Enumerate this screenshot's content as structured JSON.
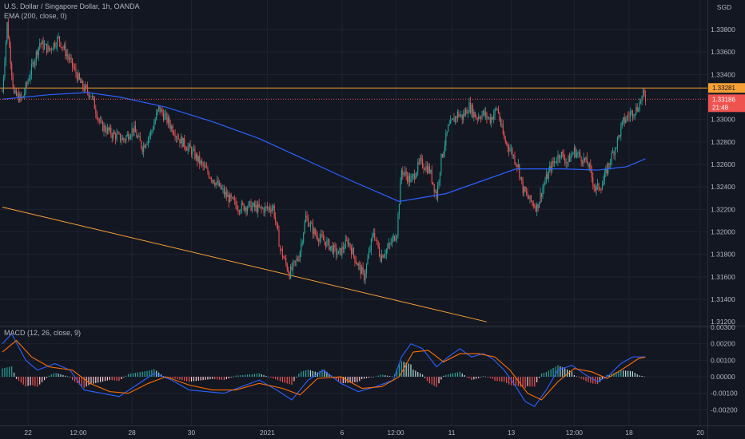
{
  "header": {
    "symbol_line": "U.S. Dollar / Singapore Dollar, 1h, OANDA",
    "ema_line": "EMA (200, close, 0)",
    "currency": "SGD"
  },
  "macd_pane": {
    "title": "MACD (12, 26, close, 9)"
  },
  "price_tags": {
    "resistance": "1.33281",
    "last": "1.33186",
    "countdown": "21:48"
  },
  "colors": {
    "background": "#131722",
    "up": "#26a69a",
    "down": "#ef5350",
    "ema": "#2962ff",
    "resistance": "#f7a035",
    "trendline": "#f7a035",
    "macd_line": "#2962ff",
    "signal_line": "#ff6d00"
  },
  "chart_data": [
    {
      "type": "candlestick",
      "title": "U.S. Dollar / Singapore Dollar, 1h, OANDA",
      "ylabel": "SGD",
      "ylim": [
        1.3118,
        1.3402
      ],
      "y_ticks": [
        "1.33800",
        "1.33600",
        "1.33400",
        "1.33000",
        "1.32800",
        "1.32600",
        "1.32400",
        "1.32200",
        "1.32000",
        "1.31800",
        "1.31600",
        "1.31400",
        "1.31200"
      ],
      "x_ticks": [
        "22",
        "12:00",
        "28",
        "30",
        "2021",
        "6",
        "12:00",
        "11",
        "13",
        "12:00",
        "18",
        "20"
      ],
      "x_tick_index": [
        22,
        65,
        111,
        162,
        227,
        291,
        337,
        385,
        436,
        490,
        537,
        598
      ],
      "close_path": [
        {
          "i": 0,
          "c": 1.3325
        },
        {
          "i": 4,
          "c": 1.3385
        },
        {
          "i": 10,
          "c": 1.3322
        },
        {
          "i": 17,
          "c": 1.3318
        },
        {
          "i": 27,
          "c": 1.3352
        },
        {
          "i": 32,
          "c": 1.3368
        },
        {
          "i": 40,
          "c": 1.3362
        },
        {
          "i": 48,
          "c": 1.3372
        },
        {
          "i": 58,
          "c": 1.3352
        },
        {
          "i": 68,
          "c": 1.333
        },
        {
          "i": 76,
          "c": 1.3322
        },
        {
          "i": 84,
          "c": 1.3295
        },
        {
          "i": 94,
          "c": 1.3287
        },
        {
          "i": 104,
          "c": 1.3282
        },
        {
          "i": 112,
          "c": 1.3292
        },
        {
          "i": 120,
          "c": 1.3275
        },
        {
          "i": 128,
          "c": 1.329
        },
        {
          "i": 134,
          "c": 1.331
        },
        {
          "i": 142,
          "c": 1.3298
        },
        {
          "i": 152,
          "c": 1.3282
        },
        {
          "i": 162,
          "c": 1.3272
        },
        {
          "i": 172,
          "c": 1.3258
        },
        {
          "i": 182,
          "c": 1.3245
        },
        {
          "i": 192,
          "c": 1.3232
        },
        {
          "i": 202,
          "c": 1.3222
        },
        {
          "i": 212,
          "c": 1.3223
        },
        {
          "i": 222,
          "c": 1.322
        },
        {
          "i": 232,
          "c": 1.3222
        },
        {
          "i": 238,
          "c": 1.3185
        },
        {
          "i": 246,
          "c": 1.3163
        },
        {
          "i": 254,
          "c": 1.3178
        },
        {
          "i": 260,
          "c": 1.3213
        },
        {
          "i": 268,
          "c": 1.3198
        },
        {
          "i": 278,
          "c": 1.319
        },
        {
          "i": 288,
          "c": 1.318
        },
        {
          "i": 296,
          "c": 1.3192
        },
        {
          "i": 304,
          "c": 1.3172
        },
        {
          "i": 310,
          "c": 1.316
        },
        {
          "i": 318,
          "c": 1.32
        },
        {
          "i": 324,
          "c": 1.3178
        },
        {
          "i": 332,
          "c": 1.3188
        },
        {
          "i": 338,
          "c": 1.32
        },
        {
          "i": 342,
          "c": 1.3255
        },
        {
          "i": 350,
          "c": 1.3245
        },
        {
          "i": 358,
          "c": 1.3262
        },
        {
          "i": 366,
          "c": 1.3255
        },
        {
          "i": 372,
          "c": 1.3232
        },
        {
          "i": 376,
          "c": 1.3265
        },
        {
          "i": 382,
          "c": 1.3292
        },
        {
          "i": 390,
          "c": 1.3305
        },
        {
          "i": 394,
          "c": 1.3302
        },
        {
          "i": 400,
          "c": 1.3312
        },
        {
          "i": 406,
          "c": 1.3302
        },
        {
          "i": 412,
          "c": 1.3305
        },
        {
          "i": 418,
          "c": 1.33
        },
        {
          "i": 424,
          "c": 1.331
        },
        {
          "i": 430,
          "c": 1.3282
        },
        {
          "i": 436,
          "c": 1.3272
        },
        {
          "i": 442,
          "c": 1.3258
        },
        {
          "i": 446,
          "c": 1.3238
        },
        {
          "i": 452,
          "c": 1.3228
        },
        {
          "i": 458,
          "c": 1.3222
        },
        {
          "i": 464,
          "c": 1.3242
        },
        {
          "i": 470,
          "c": 1.3258
        },
        {
          "i": 478,
          "c": 1.327
        },
        {
          "i": 484,
          "c": 1.3262
        },
        {
          "i": 490,
          "c": 1.3272
        },
        {
          "i": 496,
          "c": 1.3266
        },
        {
          "i": 502,
          "c": 1.326
        },
        {
          "i": 508,
          "c": 1.3238
        },
        {
          "i": 514,
          "c": 1.3242
        },
        {
          "i": 520,
          "c": 1.3262
        },
        {
          "i": 526,
          "c": 1.3278
        },
        {
          "i": 532,
          "c": 1.3298
        },
        {
          "i": 538,
          "c": 1.3305
        },
        {
          "i": 544,
          "c": 1.331
        },
        {
          "i": 549,
          "c": 1.3322
        },
        {
          "i": 551,
          "c": 1.3318
        }
      ],
      "ema200": [
        {
          "i": 0,
          "v": 1.3318
        },
        {
          "i": 40,
          "v": 1.3322
        },
        {
          "i": 73,
          "v": 1.3324
        },
        {
          "i": 100,
          "v": 1.332
        },
        {
          "i": 140,
          "v": 1.3311
        },
        {
          "i": 180,
          "v": 1.3298
        },
        {
          "i": 220,
          "v": 1.3283
        },
        {
          "i": 260,
          "v": 1.3264
        },
        {
          "i": 300,
          "v": 1.3245
        },
        {
          "i": 340,
          "v": 1.3227
        },
        {
          "i": 380,
          "v": 1.3234
        },
        {
          "i": 410,
          "v": 1.3245
        },
        {
          "i": 440,
          "v": 1.3256
        },
        {
          "i": 480,
          "v": 1.3256
        },
        {
          "i": 510,
          "v": 1.3255
        },
        {
          "i": 535,
          "v": 1.3258
        },
        {
          "i": 551,
          "v": 1.3265
        }
      ],
      "resistance_level": 1.3328,
      "trendline": [
        {
          "i": 0,
          "v": 1.3222
        },
        {
          "i": 415,
          "v": 1.312
        }
      ]
    },
    {
      "type": "histogram+line",
      "title": "MACD (12, 26, close, 9)",
      "ylim": [
        -0.0029,
        0.003
      ],
      "y_ticks": [
        "0.00300",
        "0.00200",
        "0.00100",
        "0.00000",
        "-0.00100",
        "-0.00200"
      ],
      "macd": [
        {
          "i": 0,
          "v": 0.002
        },
        {
          "i": 8,
          "v": 0.0026
        },
        {
          "i": 20,
          "v": 0.001
        },
        {
          "i": 30,
          "v": 0.0004
        },
        {
          "i": 45,
          "v": 0.0008
        },
        {
          "i": 58,
          "v": 0.0004
        },
        {
          "i": 70,
          "v": -0.0008
        },
        {
          "i": 85,
          "v": -0.001
        },
        {
          "i": 100,
          "v": -0.0012
        },
        {
          "i": 115,
          "v": -0.0005
        },
        {
          "i": 130,
          "v": 0.0002
        },
        {
          "i": 145,
          "v": -0.0002
        },
        {
          "i": 160,
          "v": -0.0008
        },
        {
          "i": 175,
          "v": -0.0009
        },
        {
          "i": 190,
          "v": -0.001
        },
        {
          "i": 205,
          "v": -0.0006
        },
        {
          "i": 220,
          "v": -0.0002
        },
        {
          "i": 235,
          "v": -0.0008
        },
        {
          "i": 248,
          "v": -0.0014
        },
        {
          "i": 262,
          "v": -0.0002
        },
        {
          "i": 275,
          "v": 0.0004
        },
        {
          "i": 290,
          "v": -0.0004
        },
        {
          "i": 305,
          "v": -0.0009
        },
        {
          "i": 320,
          "v": -0.0006
        },
        {
          "i": 335,
          "v": -0.0002
        },
        {
          "i": 342,
          "v": 0.0012
        },
        {
          "i": 350,
          "v": 0.002
        },
        {
          "i": 360,
          "v": 0.0017
        },
        {
          "i": 372,
          "v": 0.0006
        },
        {
          "i": 382,
          "v": 0.0012
        },
        {
          "i": 392,
          "v": 0.0017
        },
        {
          "i": 402,
          "v": 0.0012
        },
        {
          "i": 412,
          "v": 0.0014
        },
        {
          "i": 420,
          "v": 0.0011
        },
        {
          "i": 430,
          "v": 0.0004
        },
        {
          "i": 440,
          "v": -0.0006
        },
        {
          "i": 448,
          "v": -0.0015
        },
        {
          "i": 456,
          "v": -0.0018
        },
        {
          "i": 466,
          "v": -0.0008
        },
        {
          "i": 476,
          "v": 0.0004
        },
        {
          "i": 488,
          "v": 0.0007
        },
        {
          "i": 500,
          "v": 0.0001
        },
        {
          "i": 510,
          "v": -0.0003
        },
        {
          "i": 520,
          "v": 0.0001
        },
        {
          "i": 530,
          "v": 0.0008
        },
        {
          "i": 540,
          "v": 0.0012
        },
        {
          "i": 551,
          "v": 0.0012
        }
      ],
      "signal": [
        {
          "i": 0,
          "v": 0.0015
        },
        {
          "i": 12,
          "v": 0.0022
        },
        {
          "i": 25,
          "v": 0.0012
        },
        {
          "i": 40,
          "v": 0.0006
        },
        {
          "i": 60,
          "v": 0.0004
        },
        {
          "i": 75,
          "v": -0.0004
        },
        {
          "i": 92,
          "v": -0.0009
        },
        {
          "i": 108,
          "v": -0.001
        },
        {
          "i": 125,
          "v": -0.0004
        },
        {
          "i": 140,
          "v": 0.0
        },
        {
          "i": 160,
          "v": -0.0005
        },
        {
          "i": 180,
          "v": -0.0008
        },
        {
          "i": 200,
          "v": -0.0008
        },
        {
          "i": 220,
          "v": -0.0004
        },
        {
          "i": 240,
          "v": -0.0007
        },
        {
          "i": 255,
          "v": -0.0011
        },
        {
          "i": 270,
          "v": -0.0001
        },
        {
          "i": 290,
          "v": 0.0
        },
        {
          "i": 308,
          "v": -0.0007
        },
        {
          "i": 325,
          "v": -0.0006
        },
        {
          "i": 340,
          "v": 0.0
        },
        {
          "i": 352,
          "v": 0.0015
        },
        {
          "i": 365,
          "v": 0.0016
        },
        {
          "i": 378,
          "v": 0.0009
        },
        {
          "i": 392,
          "v": 0.0014
        },
        {
          "i": 408,
          "v": 0.0014
        },
        {
          "i": 422,
          "v": 0.0012
        },
        {
          "i": 435,
          "v": 0.0004
        },
        {
          "i": 450,
          "v": -0.001
        },
        {
          "i": 462,
          "v": -0.0014
        },
        {
          "i": 476,
          "v": -0.0003
        },
        {
          "i": 490,
          "v": 0.0005
        },
        {
          "i": 505,
          "v": 0.0003
        },
        {
          "i": 518,
          "v": -0.0001
        },
        {
          "i": 530,
          "v": 0.0004
        },
        {
          "i": 545,
          "v": 0.0011
        },
        {
          "i": 551,
          "v": 0.0012
        }
      ]
    }
  ]
}
